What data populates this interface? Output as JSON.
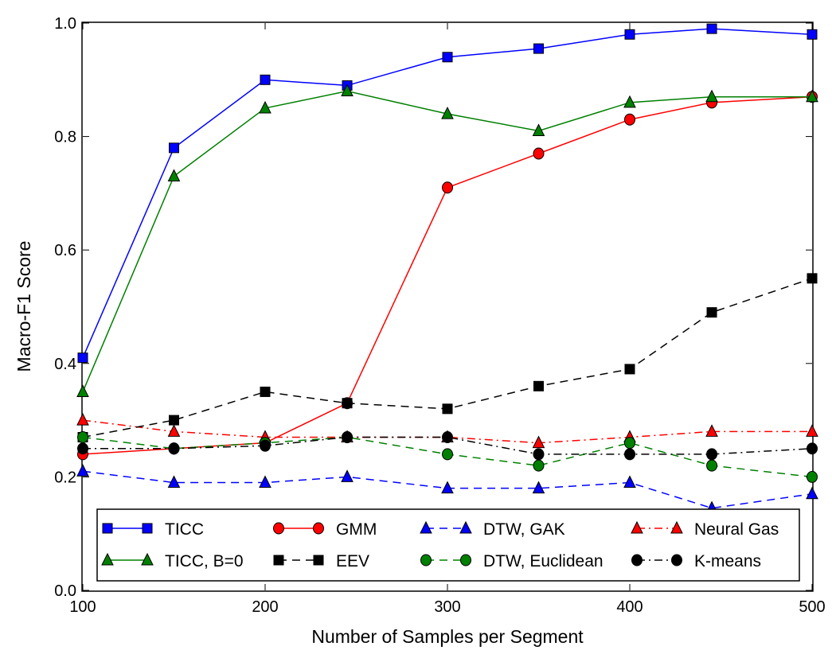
{
  "chart_data": {
    "type": "line",
    "title": "",
    "xlabel": "Number of Samples per Segment",
    "ylabel": "Macro-F1 Score",
    "xlim": [
      100,
      500
    ],
    "ylim": [
      0.0,
      1.0
    ],
    "xticks": [
      "100",
      "200",
      "300",
      "400",
      "500"
    ],
    "yticks": [
      "0.0",
      "0.2",
      "0.4",
      "0.6",
      "0.8",
      "1.0"
    ],
    "grid": false,
    "legend_placement": "bottom",
    "x": [
      100,
      150,
      200,
      245,
      300,
      350,
      400,
      445,
      500
    ],
    "series": [
      {
        "name": "TICC",
        "color": "#0000ff",
        "marker": "square",
        "linestyle": "solid",
        "values": [
          0.41,
          0.78,
          0.9,
          0.89,
          0.94,
          0.955,
          0.98,
          0.99,
          0.98
        ]
      },
      {
        "name": "GMM",
        "color": "#ff0000",
        "marker": "circle",
        "linestyle": "solid",
        "values": [
          0.24,
          0.25,
          0.26,
          0.33,
          0.71,
          0.77,
          0.83,
          0.86,
          0.87
        ]
      },
      {
        "name": "DTW, GAK",
        "color": "#0000ff",
        "marker": "triangle",
        "linestyle": "dashed",
        "values": [
          0.21,
          0.19,
          0.19,
          0.2,
          0.18,
          0.18,
          0.19,
          0.145,
          0.17
        ]
      },
      {
        "name": "Neural Gas",
        "color": "#ff0000",
        "marker": "triangle",
        "linestyle": "dashdot",
        "values": [
          0.3,
          0.28,
          0.27,
          0.27,
          0.27,
          0.26,
          0.27,
          0.28,
          0.28
        ]
      },
      {
        "name": "TICC, B=0",
        "color": "#008000",
        "marker": "triangle",
        "linestyle": "solid",
        "values": [
          0.35,
          0.73,
          0.85,
          0.88,
          0.84,
          0.81,
          0.86,
          0.87,
          0.87
        ]
      },
      {
        "name": "EEV",
        "color": "#000000",
        "marker": "square",
        "linestyle": "dashed",
        "values": [
          0.27,
          0.3,
          0.35,
          0.33,
          0.32,
          0.36,
          0.39,
          0.49,
          0.55
        ]
      },
      {
        "name": "DTW, Euclidean",
        "color": "#008000",
        "marker": "circle",
        "linestyle": "dashed",
        "values": [
          0.27,
          0.25,
          0.26,
          0.27,
          0.24,
          0.22,
          0.26,
          0.22,
          0.2
        ]
      },
      {
        "name": "K-means",
        "color": "#000000",
        "marker": "circle",
        "linestyle": "dashdot",
        "values": [
          0.25,
          0.25,
          0.255,
          0.27,
          0.27,
          0.24,
          0.24,
          0.24,
          0.25
        ]
      }
    ]
  }
}
